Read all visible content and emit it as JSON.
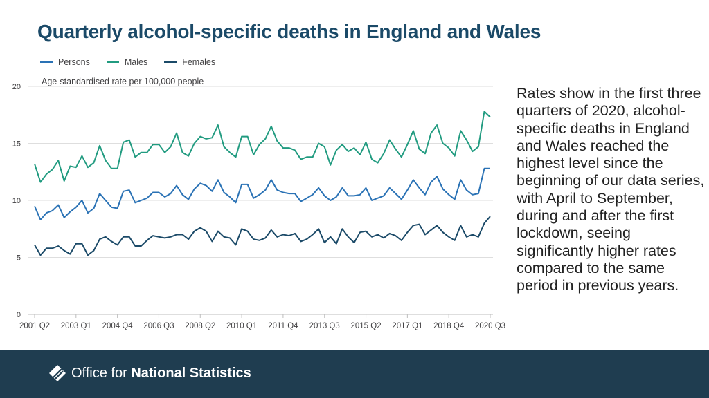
{
  "title": "Quarterly alcohol-specific deaths in England and Wales",
  "note": "Rates show in the first three quarters of 2020, alcohol-specific deaths in England and Wales reached the highest level since the beginning of our data series, with April to September, during and after the first lockdown, seeing significantly higher rates compared to the same period in previous years.",
  "footer": {
    "logo_text_light": "Office for ",
    "logo_text_bold": "National Statistics"
  },
  "colors": {
    "persons": "#2a72b5",
    "males": "#219b80",
    "females": "#1b4a68",
    "grid": "#dedede",
    "footer_bg": "#1f3d50"
  },
  "chart_data": {
    "type": "line",
    "title": "Quarterly alcohol-specific deaths in England and Wales",
    "ylabel": "Age-standardised rate per 100,000 people",
    "xlabel": "",
    "ylim": [
      0,
      20
    ],
    "yticks": [
      0,
      5,
      10,
      15,
      20
    ],
    "grid": true,
    "legend_position": "top-left",
    "x_tick_labels": [
      "2001 Q2",
      "2003 Q1",
      "2004 Q4",
      "2006 Q3",
      "2008 Q2",
      "2010 Q1",
      "2011 Q4",
      "2013 Q3",
      "2015 Q2",
      "2017 Q1",
      "2018 Q4",
      "2020 Q3"
    ],
    "x_tick_indices": [
      0,
      7,
      14,
      21,
      28,
      35,
      42,
      49,
      56,
      63,
      70,
      77
    ],
    "n_points": 78,
    "series": [
      {
        "name": "Persons",
        "color": "#2a72b5",
        "values": [
          9.5,
          8.3,
          8.9,
          9.1,
          9.6,
          8.5,
          9.0,
          9.4,
          10.0,
          8.9,
          9.3,
          10.6,
          10.0,
          9.4,
          9.3,
          10.8,
          10.9,
          9.8,
          10.0,
          10.2,
          10.7,
          10.7,
          10.3,
          10.6,
          11.3,
          10.5,
          10.1,
          11.0,
          11.5,
          11.3,
          10.8,
          11.8,
          10.7,
          10.3,
          9.8,
          11.4,
          11.4,
          10.2,
          10.5,
          10.9,
          11.8,
          10.9,
          10.7,
          10.6,
          10.6,
          9.9,
          10.2,
          10.5,
          11.1,
          10.4,
          10.0,
          10.3,
          11.1,
          10.4,
          10.4,
          10.5,
          11.1,
          10.0,
          10.2,
          10.4,
          11.1,
          10.6,
          10.1,
          10.9,
          11.8,
          11.1,
          10.5,
          11.6,
          12.1,
          11.0,
          10.5,
          10.1,
          11.8,
          10.9,
          10.5,
          10.6,
          12.8,
          12.8
        ]
      },
      {
        "name": "Males",
        "color": "#219b80",
        "values": [
          13.2,
          11.6,
          12.3,
          12.7,
          13.5,
          11.7,
          13.0,
          12.9,
          13.9,
          12.9,
          13.3,
          14.8,
          13.5,
          12.8,
          12.8,
          15.1,
          15.3,
          13.8,
          14.2,
          14.2,
          14.9,
          14.9,
          14.2,
          14.7,
          15.9,
          14.2,
          13.9,
          15.0,
          15.6,
          15.4,
          15.5,
          16.6,
          14.7,
          14.2,
          13.8,
          15.6,
          15.6,
          14.0,
          14.9,
          15.4,
          16.5,
          15.2,
          14.6,
          14.6,
          14.4,
          13.6,
          13.8,
          13.8,
          15.0,
          14.7,
          13.1,
          14.4,
          14.9,
          14.3,
          14.6,
          14.0,
          15.1,
          13.6,
          13.3,
          14.1,
          15.3,
          14.5,
          13.8,
          14.9,
          16.1,
          14.5,
          14.1,
          15.9,
          16.6,
          15.0,
          14.6,
          13.9,
          16.1,
          15.3,
          14.3,
          14.7,
          17.8,
          17.3
        ]
      },
      {
        "name": "Females",
        "color": "#1b4a68",
        "values": [
          6.1,
          5.2,
          5.8,
          5.8,
          6.0,
          5.6,
          5.3,
          6.2,
          6.2,
          5.2,
          5.6,
          6.6,
          6.8,
          6.4,
          6.1,
          6.8,
          6.8,
          6.0,
          6.0,
          6.5,
          6.9,
          6.8,
          6.7,
          6.8,
          7.0,
          7.0,
          6.6,
          7.3,
          7.6,
          7.3,
          6.4,
          7.3,
          6.8,
          6.7,
          6.1,
          7.5,
          7.3,
          6.6,
          6.5,
          6.7,
          7.4,
          6.8,
          7.0,
          6.9,
          7.1,
          6.4,
          6.6,
          7.0,
          7.5,
          6.3,
          6.8,
          6.2,
          7.5,
          6.8,
          6.3,
          7.2,
          7.3,
          6.8,
          7.0,
          6.7,
          7.1,
          6.9,
          6.5,
          7.2,
          7.8,
          7.9,
          7.0,
          7.4,
          7.8,
          7.2,
          6.8,
          6.5,
          7.8,
          6.8,
          7.0,
          6.8,
          8.0,
          8.6
        ]
      }
    ]
  }
}
